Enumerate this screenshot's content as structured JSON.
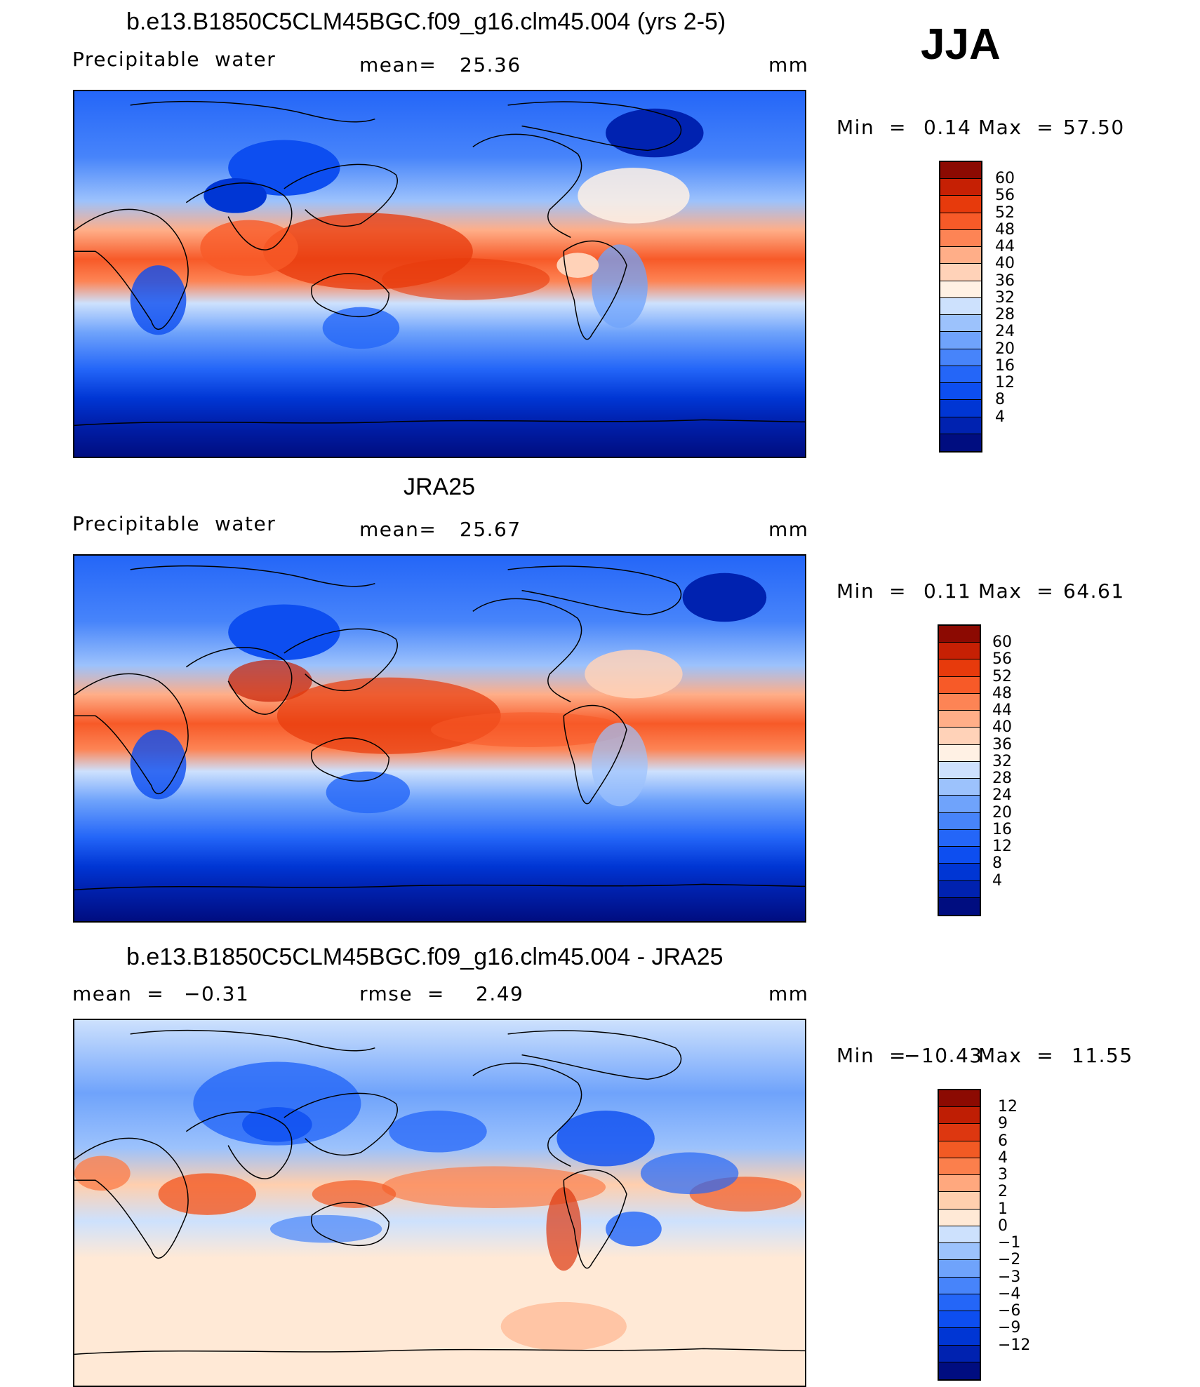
{
  "season": "JJA",
  "colors": {
    "precip_scale": [
      "#000d80",
      "#0022b0",
      "#0036d4",
      "#0d4ef0",
      "#2466f8",
      "#4784fa",
      "#6fa3fb",
      "#9cc2fc",
      "#cde1fd",
      "#fff1e4",
      "#ffd2b8",
      "#ffae88",
      "#fd8455",
      "#f75a28",
      "#e73a0c",
      "#c62004",
      "#8c0a02"
    ],
    "diff_scale": [
      "#000d80",
      "#0022b0",
      "#0036d4",
      "#0d4ef0",
      "#2466f8",
      "#4784fa",
      "#6fa3fb",
      "#9cc2fc",
      "#cde1fd",
      "#ffe9d6",
      "#ffcfae",
      "#ffa87e",
      "#fb7f4c",
      "#f25a24",
      "#dd3710",
      "#bf1e04",
      "#8c0a02"
    ]
  },
  "panels": [
    {
      "id": "model",
      "title": "b.e13.B1850C5CLM45BGC.f09_g16.clm45.004 (yrs 2-5)",
      "variable": "Precipitable  water",
      "stat_label": "mean=",
      "stat_value": "25.36",
      "units": "mm",
      "min_label": "Min  =",
      "min_value": "0.14",
      "max_label": "Max  =",
      "max_value": "57.50",
      "colorbar_labels": [
        "60",
        "56",
        "52",
        "48",
        "44",
        "40",
        "36",
        "32",
        "28",
        "24",
        "20",
        "16",
        "12",
        "8",
        "4"
      ]
    },
    {
      "id": "obs",
      "title": "JRA25",
      "variable": "Precipitable  water",
      "stat_label": "mean=",
      "stat_value": "25.67",
      "units": "mm",
      "min_label": "Min  =",
      "min_value": "0.11",
      "max_label": "Max  =",
      "max_value": "64.61",
      "colorbar_labels": [
        "60",
        "56",
        "52",
        "48",
        "44",
        "40",
        "36",
        "32",
        "28",
        "24",
        "20",
        "16",
        "12",
        "8",
        "4"
      ]
    },
    {
      "id": "diff",
      "title": "b.e13.B1850C5CLM45BGC.f09_g16.clm45.004 - JRA25",
      "mean_label": "mean  =",
      "mean_value": "−0.31",
      "stat_label": "rmse  =",
      "stat_value": "2.49",
      "units": "mm",
      "min_label": "Min  =",
      "min_value": "−10.43",
      "max_label": "Max  =",
      "max_value": "11.55",
      "colorbar_labels": [
        "12",
        "9",
        "6",
        "4",
        "3",
        "2",
        "1",
        "0",
        "−1",
        "−2",
        "−3",
        "−4",
        "−6",
        "−9",
        "−12"
      ]
    }
  ]
}
